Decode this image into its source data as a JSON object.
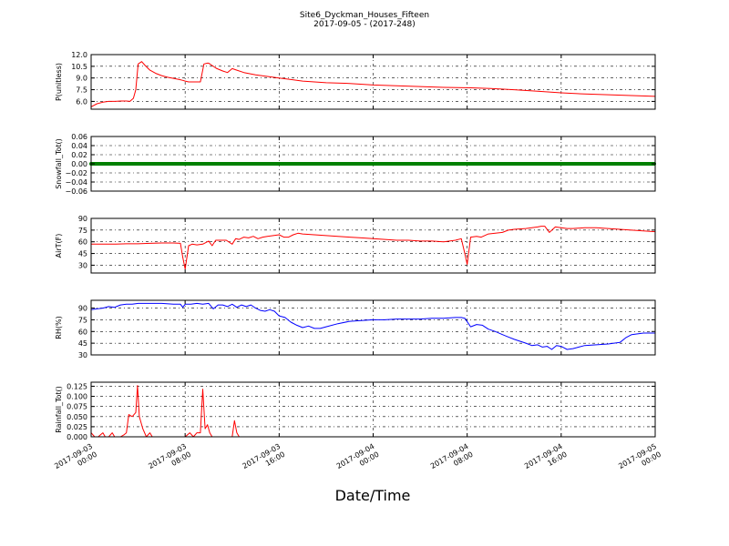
{
  "title_line1": "Site6_Dyckman_Houses_Fifteen",
  "title_line2": "2017-09-05 - (2017-248)",
  "xlabel": "Date/Time",
  "colors": {
    "red": "#ff0000",
    "green": "#008000",
    "blue": "#0000ff",
    "axis": "#000000"
  },
  "chart_data": [
    {
      "type": "line",
      "ylabel": "P(unitless)",
      "ylim": [
        5.0,
        12.0
      ],
      "yticks": [
        "6.0",
        "7.5",
        "9.0",
        "10.5",
        "12.0"
      ],
      "ytick_values": [
        6.0,
        7.5,
        9.0,
        10.5,
        12.0
      ],
      "color": "#ff0000",
      "x_hours": [
        0,
        0.5,
        1,
        1.5,
        2,
        2.5,
        3,
        3.3,
        3.6,
        3.8,
        4.0,
        4.3,
        4.6,
        5,
        5.5,
        6,
        6.5,
        7,
        7.5,
        7.8,
        8.0,
        8.3,
        8.7,
        9.3,
        9.6,
        9.9,
        10,
        10.3,
        10.7,
        11.2,
        11.6,
        12,
        12.4,
        13,
        14,
        15,
        16,
        17,
        18,
        19,
        20,
        22,
        24,
        26,
        28,
        30,
        32,
        34,
        36,
        38,
        40,
        42,
        44,
        46,
        48
      ],
      "values": [
        5.3,
        5.7,
        5.9,
        6.0,
        6.0,
        6.05,
        6.05,
        6.0,
        6.4,
        7.5,
        10.8,
        11.1,
        10.6,
        10.0,
        9.6,
        9.3,
        9.1,
        8.95,
        8.8,
        8.7,
        8.6,
        8.5,
        8.5,
        8.5,
        10.8,
        10.9,
        10.9,
        10.6,
        10.2,
        9.9,
        9.7,
        10.2,
        10.0,
        9.7,
        9.4,
        9.2,
        9.0,
        8.8,
        8.6,
        8.5,
        8.4,
        8.3,
        8.1,
        8.0,
        7.9,
        7.8,
        7.75,
        7.65,
        7.5,
        7.3,
        7.1,
        6.95,
        6.85,
        6.75,
        6.65
      ]
    },
    {
      "type": "line",
      "ylabel": "Snowfall_Tot()",
      "ylim": [
        -0.06,
        0.06
      ],
      "yticks": [
        "−0.06",
        "−0.04",
        "−0.02",
        "0.00",
        "0.02",
        "0.04",
        "0.06"
      ],
      "ytick_values": [
        -0.06,
        -0.04,
        -0.02,
        0.0,
        0.02,
        0.04,
        0.06
      ],
      "color": "#008000",
      "marker": "dot",
      "x_hours": [
        0,
        48
      ],
      "values": [
        0.0,
        0.0
      ]
    },
    {
      "type": "line",
      "ylabel": "AirT(F)",
      "ylim": [
        20,
        90
      ],
      "yticks": [
        "30",
        "45",
        "60",
        "75",
        "90"
      ],
      "ytick_values": [
        30,
        45,
        60,
        75,
        90
      ],
      "color": "#ff0000",
      "x_hours": [
        0,
        1,
        2,
        3,
        4,
        5,
        6,
        7,
        7.6,
        7.8,
        8.0,
        8.3,
        8.6,
        9,
        9.5,
        10,
        10.3,
        10.6,
        11,
        11.5,
        12,
        12.3,
        12.6,
        13,
        13.4,
        13.8,
        14.2,
        14.6,
        15,
        15.5,
        16,
        16.4,
        16.8,
        17.2,
        17.6,
        18,
        19,
        20,
        21,
        22,
        23,
        24,
        25,
        26,
        27,
        28,
        29,
        30,
        31,
        31.5,
        31.8,
        32.0,
        32.3,
        32.8,
        33.2,
        33.8,
        34.4,
        35,
        35.5,
        36,
        37,
        37.5,
        38,
        38.3,
        38.6,
        39,
        39.5,
        40,
        40.5,
        41,
        42,
        43,
        44,
        45,
        46,
        47,
        48
      ],
      "values": [
        57,
        57,
        57,
        57.5,
        57.5,
        58,
        58.5,
        58.5,
        58,
        40,
        25,
        55,
        57,
        56,
        57,
        61,
        55,
        62,
        62,
        62,
        57,
        64,
        63,
        66,
        65,
        67,
        64,
        66,
        67,
        68,
        69,
        66,
        66,
        69,
        71,
        70,
        69,
        68,
        67,
        66,
        65,
        64,
        63,
        62,
        62,
        61,
        61,
        60,
        62,
        64,
        45,
        31,
        66,
        67,
        66,
        70,
        71,
        72,
        75,
        76,
        77,
        78,
        79,
        80,
        80,
        72,
        79,
        78,
        77,
        77,
        78,
        78,
        77,
        76,
        75,
        74,
        73
      ]
    },
    {
      "type": "line",
      "ylabel": "RH(%)",
      "ylim": [
        30,
        100
      ],
      "yticks": [
        "30",
        "45",
        "60",
        "75",
        "90"
      ],
      "ytick_values": [
        30,
        45,
        60,
        75,
        90
      ],
      "color": "#0000ff",
      "x_hours": [
        0,
        0.5,
        1,
        1.5,
        2,
        2.5,
        3,
        3.5,
        4,
        5,
        6,
        7,
        7.6,
        7.8,
        8.0,
        8.5,
        9,
        9.5,
        10,
        10.4,
        10.8,
        11.2,
        11.6,
        12,
        12.4,
        12.8,
        13.2,
        13.6,
        14,
        14.4,
        14.8,
        15.2,
        15.6,
        16,
        16.5,
        17,
        17.5,
        18,
        18.5,
        19,
        19.5,
        20,
        21,
        22,
        23,
        24,
        25,
        26,
        27,
        28,
        29,
        30,
        31,
        31.5,
        31.8,
        32.3,
        32.8,
        33.3,
        33.8,
        34.4,
        35,
        35.5,
        36,
        37,
        37.5,
        38,
        38.4,
        38.8,
        39.2,
        39.6,
        40,
        40.5,
        41,
        41.5,
        42,
        43,
        44,
        45,
        45.5,
        46,
        47,
        48
      ],
      "values": [
        88,
        89,
        90,
        92,
        91,
        94,
        95,
        95,
        96,
        96,
        96,
        95,
        95,
        91,
        95,
        95,
        96,
        95,
        96,
        89,
        94,
        94,
        92,
        95,
        91,
        94,
        92,
        94,
        90,
        87,
        86,
        88,
        86,
        80,
        78,
        72,
        68,
        65,
        67,
        64,
        64,
        66,
        70,
        73,
        74,
        75,
        75,
        76,
        76,
        76,
        77,
        77,
        78,
        78,
        77,
        66,
        69,
        68,
        63,
        60,
        56,
        53,
        50,
        45,
        42,
        43,
        40,
        41,
        37,
        42,
        41,
        37,
        38,
        40,
        42,
        43,
        44,
        46,
        52,
        56,
        58,
        58
      ]
    },
    {
      "type": "line",
      "ylabel": "Rainfall_Tot()",
      "ylim": [
        0,
        0.135
      ],
      "yticks": [
        "0.000",
        "0.025",
        "0.050",
        "0.075",
        "0.100",
        "0.125"
      ],
      "ytick_values": [
        0.0,
        0.025,
        0.05,
        0.075,
        0.1,
        0.125
      ],
      "color": "#ff0000",
      "x_hours": [
        0,
        0.3,
        0.6,
        1.0,
        1.2,
        1.5,
        1.8,
        2.0,
        2.2,
        2.5,
        2.8,
        3.0,
        3.2,
        3.5,
        3.8,
        3.95,
        4.1,
        4.4,
        4.7,
        5.0,
        5.2,
        5.5,
        8,
        8.4,
        8.7,
        9.0,
        9.3,
        9.5,
        9.7,
        9.9,
        10.1,
        10.3,
        10.6,
        12,
        12.2,
        12.4,
        12.6,
        13,
        24,
        36,
        48
      ],
      "values": [
        0.01,
        0.0,
        0.0,
        0.01,
        0.0,
        0.0,
        0.01,
        0.0,
        0.0,
        0.0,
        0.005,
        0.01,
        0.055,
        0.05,
        0.06,
        0.127,
        0.05,
        0.02,
        0.0,
        0.01,
        0.0,
        0.0,
        0.0,
        0.01,
        0.0,
        0.01,
        0.01,
        0.118,
        0.02,
        0.03,
        0.01,
        0.0,
        0.0,
        0.0,
        0.04,
        0.01,
        0.0,
        0.0,
        0.0,
        0.0,
        0.0
      ]
    }
  ],
  "x_axis": {
    "range_hours": [
      0,
      48
    ],
    "tick_hours": [
      0,
      8,
      16,
      24,
      32,
      40,
      48
    ],
    "tick_labels": [
      [
        "2017-09-03",
        "00:00"
      ],
      [
        "2017-09-03",
        "08:00"
      ],
      [
        "2017-09-03",
        "16:00"
      ],
      [
        "2017-09-04",
        "00:00"
      ],
      [
        "2017-09-04",
        "08:00"
      ],
      [
        "2017-09-04",
        "16:00"
      ],
      [
        "2017-09-05",
        "00:00"
      ]
    ]
  }
}
